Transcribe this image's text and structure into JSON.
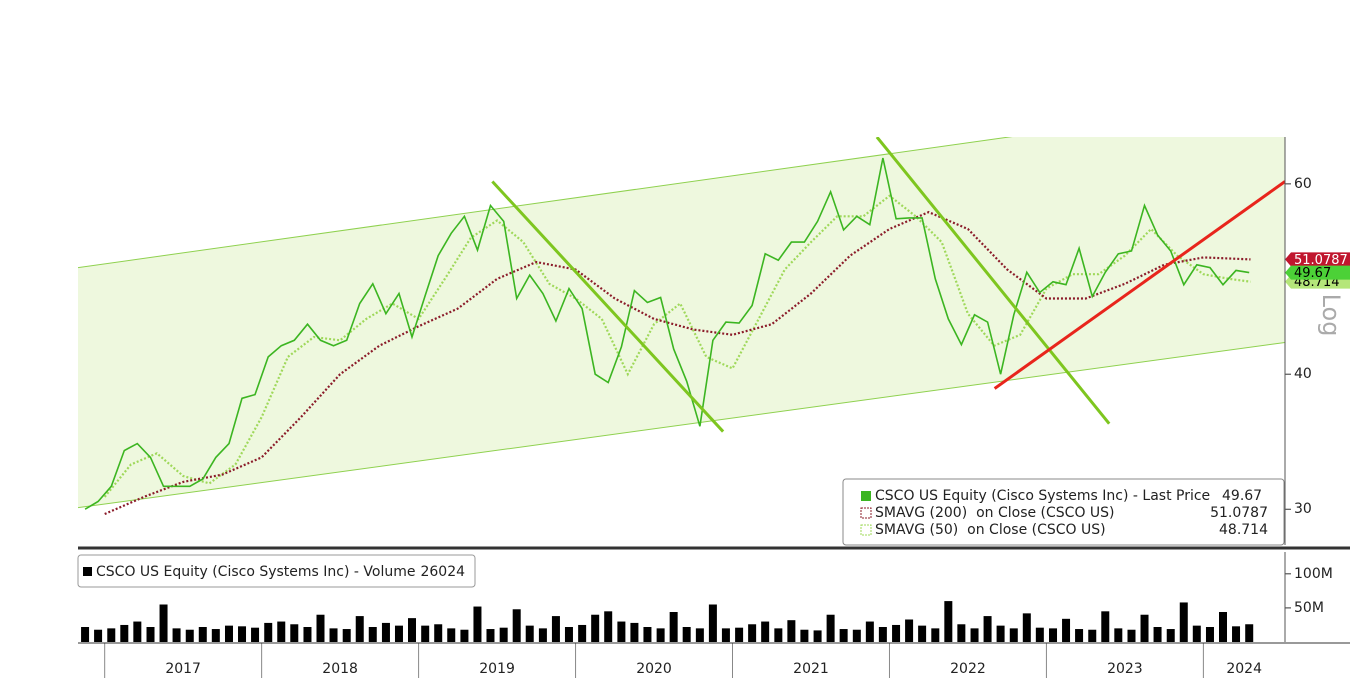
{
  "chart_data": [
    {
      "type": "line",
      "log_scale": true,
      "y_axis_label": "Log",
      "legend_position": "bottom-right",
      "xlim": [
        2016.83,
        2024.52
      ],
      "ylim": [
        27.8,
        66.3
      ],
      "yticks": [
        30,
        40,
        60
      ],
      "channel": {
        "color": "#eef8de",
        "edge_color": "#8fd14f",
        "upper": {
          "x": [
            2016.83,
            2024.52
          ],
          "values": [
            50.2,
            72
          ]
        },
        "lower": {
          "x": [
            2016.83,
            2024.52
          ],
          "values": [
            30.1,
            42.8
          ]
        }
      },
      "trendlines": [
        {
          "color": "#7ec61f",
          "x": [
            2019.47,
            2020.94
          ],
          "values": [
            60.3,
            35.4
          ]
        },
        {
          "color": "#7ec61f",
          "x": [
            2021.92,
            2023.4
          ],
          "values": [
            66.3,
            36.0
          ]
        },
        {
          "color": "#e8251c",
          "x": [
            2022.67,
            2024.52
          ],
          "values": [
            38.8,
            60.3
          ]
        }
      ],
      "series": [
        {
          "name": "CSCO US Equity (Cisco Systems Inc) - Last Price",
          "color": "#3cb521",
          "tag_color": "#4cd137",
          "style": "solid",
          "x": [
            2016.875,
            2016.958,
            2017.042,
            2017.125,
            2017.208,
            2017.292,
            2017.375,
            2017.458,
            2017.542,
            2017.625,
            2017.708,
            2017.792,
            2017.875,
            2017.958,
            2018.042,
            2018.125,
            2018.208,
            2018.292,
            2018.375,
            2018.458,
            2018.542,
            2018.625,
            2018.708,
            2018.792,
            2018.875,
            2018.958,
            2019.042,
            2019.125,
            2019.208,
            2019.292,
            2019.375,
            2019.458,
            2019.542,
            2019.625,
            2019.708,
            2019.792,
            2019.875,
            2019.958,
            2020.042,
            2020.125,
            2020.208,
            2020.292,
            2020.375,
            2020.458,
            2020.542,
            2020.625,
            2020.708,
            2020.792,
            2020.875,
            2020.958,
            2021.042,
            2021.125,
            2021.208,
            2021.292,
            2021.375,
            2021.458,
            2021.542,
            2021.625,
            2021.708,
            2021.792,
            2021.875,
            2021.958,
            2022.042,
            2022.125,
            2022.208,
            2022.292,
            2022.375,
            2022.458,
            2022.542,
            2022.625,
            2022.708,
            2022.792,
            2022.875,
            2022.958,
            2023.042,
            2023.125,
            2023.208,
            2023.292,
            2023.375,
            2023.458,
            2023.542,
            2023.625,
            2023.708,
            2023.792,
            2023.875,
            2023.958,
            2024.042,
            2024.125,
            2024.208,
            2024.292
          ],
          "values": [
            30.0,
            30.5,
            31.5,
            34,
            34.5,
            33.5,
            31.5,
            31.5,
            31.5,
            32,
            33.5,
            34.5,
            38,
            38.3,
            41.5,
            42.5,
            43,
            44.5,
            43,
            42.5,
            43,
            46.5,
            48.5,
            45.5,
            47.5,
            43.3,
            47.3,
            51.5,
            54,
            56,
            52.1,
            57.3,
            55.4,
            47,
            49.4,
            47.5,
            44.8,
            48,
            46,
            40,
            39.3,
            42.4,
            47.8,
            46.6,
            47.1,
            42.2,
            39.4,
            35.8,
            43,
            44.7,
            44.6,
            46.3,
            51.7,
            51,
            53,
            53,
            55.4,
            59,
            54.4,
            56,
            55,
            63.4,
            55.7,
            55.8,
            55.8,
            49,
            45,
            42.6,
            45.4,
            44.7,
            40,
            45.4,
            49.7,
            47.6,
            48.7,
            48.4,
            52.3,
            47.2,
            49.7,
            51.7,
            52,
            57.3,
            53.8,
            52,
            48.4,
            50.5,
            50.2,
            48.4,
            49.9,
            49.67
          ]
        },
        {
          "name": "SMAVG (200)  on Close (CSCO US)",
          "color": "#8b1c2a",
          "tag_color": "#c0162e",
          "style": "dotted",
          "x": [
            2017.0,
            2017.25,
            2017.5,
            2017.75,
            2018.0,
            2018.25,
            2018.5,
            2018.75,
            2019.0,
            2019.25,
            2019.5,
            2019.75,
            2020.0,
            2020.25,
            2020.5,
            2020.75,
            2021.0,
            2021.25,
            2021.5,
            2021.75,
            2022.0,
            2022.25,
            2022.5,
            2022.75,
            2023.0,
            2023.25,
            2023.5,
            2023.75,
            2024.0,
            2024.3
          ],
          "values": [
            29.7,
            30.8,
            31.8,
            32.3,
            33.5,
            36.5,
            40,
            42.5,
            44.3,
            46,
            49,
            50.8,
            50,
            47,
            45,
            44,
            43.5,
            44.5,
            47.5,
            51.5,
            54.5,
            56.5,
            54.5,
            50,
            47,
            47,
            48.5,
            50.5,
            51.3,
            51.0787
          ]
        },
        {
          "name": "SMAVG (50)  on Close (CSCO US)",
          "color": "#9fd85a",
          "tag_color": "#b5e67a",
          "style": "dotted",
          "x": [
            2017.0,
            2017.167,
            2017.333,
            2017.5,
            2017.667,
            2017.833,
            2018.0,
            2018.167,
            2018.333,
            2018.5,
            2018.667,
            2018.833,
            2019.0,
            2019.167,
            2019.333,
            2019.5,
            2019.667,
            2019.833,
            2020.0,
            2020.167,
            2020.333,
            2020.5,
            2020.667,
            2020.833,
            2021.0,
            2021.167,
            2021.333,
            2021.5,
            2021.667,
            2021.833,
            2022.0,
            2022.167,
            2022.333,
            2022.5,
            2022.667,
            2022.833,
            2023.0,
            2023.167,
            2023.333,
            2023.5,
            2023.667,
            2023.833,
            2024.0,
            2024.167,
            2024.3
          ],
          "values": [
            30.8,
            33,
            33.8,
            32.2,
            31.7,
            33,
            36.5,
            41.5,
            43.3,
            43,
            45,
            46.5,
            45,
            49,
            53.5,
            55.5,
            53,
            48.5,
            47,
            45,
            40,
            44.5,
            46.5,
            41.5,
            40.5,
            45,
            50,
            53,
            56,
            56,
            58.5,
            56,
            53,
            45.5,
            42.5,
            43.5,
            48,
            49.5,
            49.5,
            51.5,
            54.5,
            51.5,
            49.5,
            49,
            48.714
          ]
        }
      ]
    },
    {
      "type": "bar",
      "xlim": [
        2016.83,
        2024.52
      ],
      "ylim": [
        0,
        132
      ],
      "yticks": [
        {
          "value": 50,
          "label": "50M"
        },
        {
          "value": 100,
          "label": "100M"
        }
      ],
      "xticks": [
        {
          "value": 2017,
          "label": "2017"
        },
        {
          "value": 2018,
          "label": "2018"
        },
        {
          "value": 2019,
          "label": "2019"
        },
        {
          "value": 2020,
          "label": "2020"
        },
        {
          "value": 2021,
          "label": "2021"
        },
        {
          "value": 2022,
          "label": "2022"
        },
        {
          "value": 2023,
          "label": "2023"
        },
        {
          "value": 2024,
          "label": "2024"
        }
      ],
      "legend_position": "top-left",
      "last_volume": 26024,
      "series": [
        {
          "name": "CSCO US Equity (Cisco Systems Inc) - Volume",
          "color": "#000000",
          "x": [
            2016.875,
            2016.958,
            2017.042,
            2017.125,
            2017.208,
            2017.292,
            2017.375,
            2017.458,
            2017.542,
            2017.625,
            2017.708,
            2017.792,
            2017.875,
            2017.958,
            2018.042,
            2018.125,
            2018.208,
            2018.292,
            2018.375,
            2018.458,
            2018.542,
            2018.625,
            2018.708,
            2018.792,
            2018.875,
            2018.958,
            2019.042,
            2019.125,
            2019.208,
            2019.292,
            2019.375,
            2019.458,
            2019.542,
            2019.625,
            2019.708,
            2019.792,
            2019.875,
            2019.958,
            2020.042,
            2020.125,
            2020.208,
            2020.292,
            2020.375,
            2020.458,
            2020.542,
            2020.625,
            2020.708,
            2020.792,
            2020.875,
            2020.958,
            2021.042,
            2021.125,
            2021.208,
            2021.292,
            2021.375,
            2021.458,
            2021.542,
            2021.625,
            2021.708,
            2021.792,
            2021.875,
            2021.958,
            2022.042,
            2022.125,
            2022.208,
            2022.292,
            2022.375,
            2022.458,
            2022.542,
            2022.625,
            2022.708,
            2022.792,
            2022.875,
            2022.958,
            2023.042,
            2023.125,
            2023.208,
            2023.292,
            2023.375,
            2023.458,
            2023.542,
            2023.625,
            2023.708,
            2023.792,
            2023.875,
            2023.958,
            2024.042,
            2024.125,
            2024.208,
            2024.292
          ],
          "values": [
            22,
            18,
            20,
            25,
            30,
            22,
            55,
            20,
            18,
            22,
            19,
            24,
            23,
            21,
            28,
            30,
            26,
            22,
            40,
            20,
            19,
            38,
            22,
            28,
            24,
            35,
            24,
            26,
            20,
            18,
            52,
            19,
            21,
            48,
            24,
            20,
            38,
            22,
            25,
            40,
            45,
            30,
            28,
            22,
            20,
            44,
            22,
            20,
            55,
            20,
            21,
            26,
            30,
            20,
            32,
            18,
            17,
            40,
            19,
            18,
            30,
            22,
            25,
            33,
            24,
            20,
            60,
            26,
            20,
            38,
            24,
            20,
            42,
            21,
            20,
            34,
            19,
            18,
            45,
            20,
            18,
            40,
            22,
            19,
            58,
            24,
            22,
            44,
            23,
            26.024
          ]
        }
      ]
    }
  ]
}
